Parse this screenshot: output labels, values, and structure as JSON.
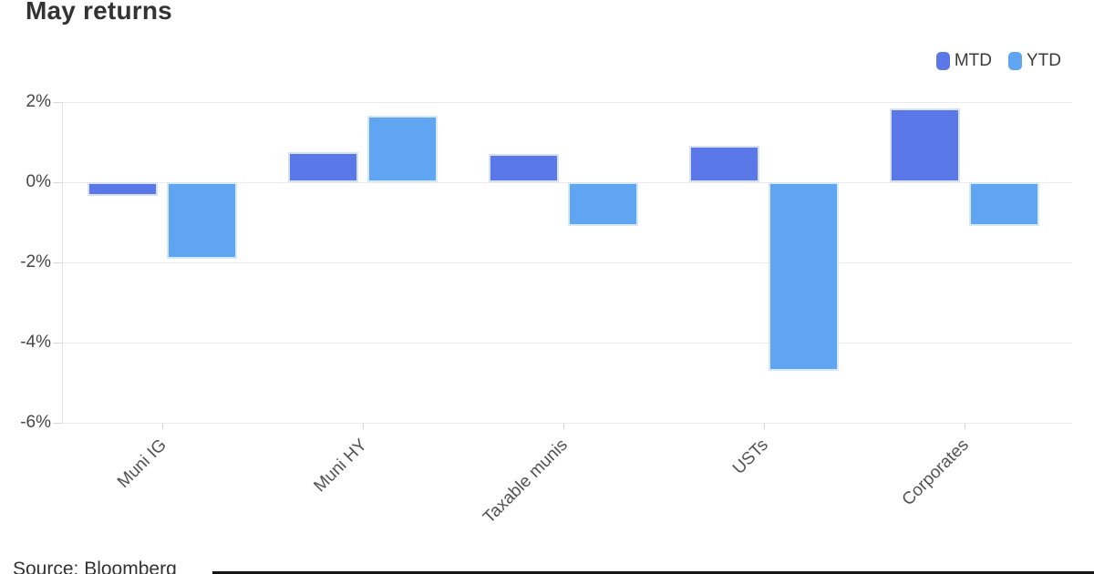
{
  "title": "May returns",
  "source": "Source: Bloomberg",
  "colors": {
    "mtd": "#5a78e8",
    "mtd_border": "#d9e0fa",
    "ytd": "#5fa5f2",
    "ytd_border": "#d6e9fc",
    "grid": "#ebebeb",
    "text_dark": "#333333",
    "divider": "#151515"
  },
  "legend": {
    "items": [
      {
        "label": "MTD",
        "color": "#5a78e8"
      },
      {
        "label": "YTD",
        "color": "#5fa5f2"
      }
    ]
  },
  "chart_data": {
    "type": "bar",
    "title": "May returns",
    "categories": [
      "Muni IG",
      "Muni HY",
      "Taxable munis",
      "USTs",
      "Corporates"
    ],
    "series": [
      {
        "name": "MTD",
        "color": "#5a78e8",
        "border": "#d9e0fa",
        "values": [
          -0.35,
          0.75,
          0.7,
          0.9,
          1.85
        ]
      },
      {
        "name": "YTD",
        "color": "#5fa5f2",
        "border": "#d6e9fc",
        "values": [
          -1.9,
          1.65,
          -1.1,
          -4.7,
          -1.1
        ]
      }
    ],
    "xlabel": "",
    "ylabel": "",
    "ylim": [
      -6,
      2
    ],
    "yticks": [
      2,
      0,
      -2,
      -4,
      -6
    ],
    "ytick_labels": [
      "2%",
      "0%",
      "-2%",
      "-4%",
      "-6%"
    ],
    "grid": true,
    "legend_position": "top-right"
  }
}
